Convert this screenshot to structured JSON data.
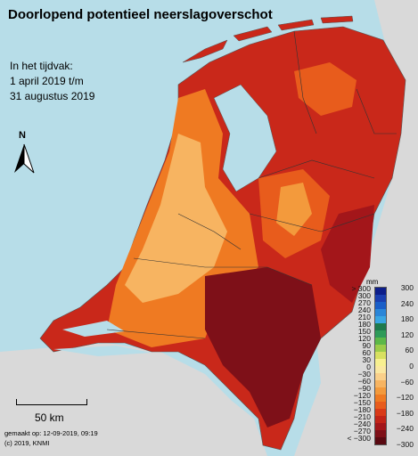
{
  "title": "Doorlopend potentieel neerslagoverschot",
  "period": {
    "line1": "In het tijdvak:",
    "line2": "1 april 2019 t/m",
    "line3": "31 augustus 2019"
  },
  "north_label": "N",
  "scale_label": "50 km",
  "credits": {
    "made": "gemaakt op: 12-09-2019, 09:19",
    "copyright": "(c) 2019, KNMI"
  },
  "legend": {
    "unit": "mm",
    "left_labels": [
      "> 300",
      "300",
      "270",
      "240",
      "210",
      "180",
      "150",
      "120",
      "90",
      "60",
      "30",
      "0",
      "−30",
      "−60",
      "−90",
      "−120",
      "−150",
      "−180",
      "−210",
      "−240",
      "−270",
      "< −300"
    ],
    "right_labels": [
      "300",
      "240",
      "180",
      "120",
      "60",
      "0",
      "−60",
      "−120",
      "−180",
      "−240",
      "−300"
    ],
    "colors": [
      "#0d1e8a",
      "#1a3fb0",
      "#1a5fc8",
      "#2a86d8",
      "#3aa6e2",
      "#1e7a4c",
      "#2e9a58",
      "#5cb848",
      "#9ccc4a",
      "#d8e060",
      "#f8f090",
      "#fbe8a0",
      "#fad08a",
      "#f7b461",
      "#f39a3c",
      "#ef7a22",
      "#e85c1c",
      "#d93a18",
      "#c22418",
      "#a3161a",
      "#7e1018",
      "#5a0a12"
    ]
  },
  "palette": {
    "sea": "#b7dde8",
    "land_outside": "#d9d9d9",
    "water_inland": "#b7dde8"
  }
}
